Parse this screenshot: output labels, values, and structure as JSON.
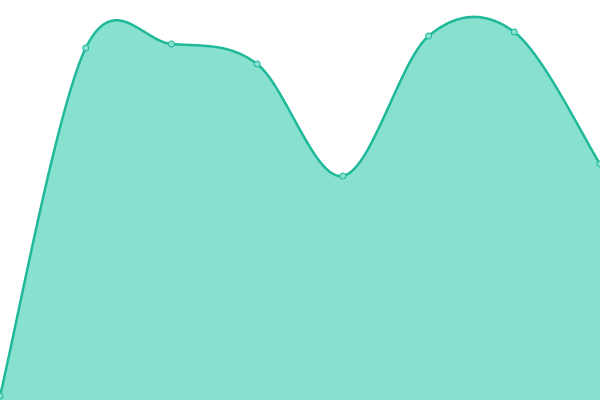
{
  "chart_data": {
    "type": "area",
    "categories": [
      null,
      null,
      null,
      null,
      null,
      null,
      null,
      null
    ],
    "values": [
      1,
      88,
      89,
      84,
      56,
      91,
      92,
      59
    ],
    "ylim": [
      0,
      100
    ],
    "color": "#1fb99a",
    "fill_color": "#88e0cf",
    "smooth": true,
    "markers": true
  }
}
